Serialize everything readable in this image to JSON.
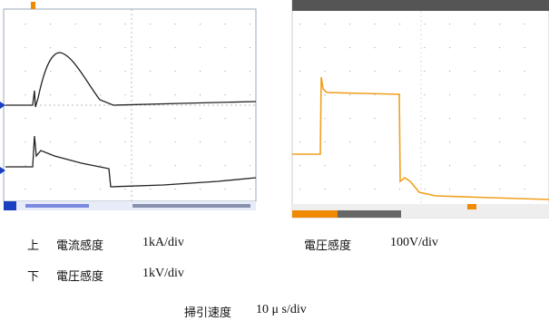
{
  "captions": {
    "upper": {
      "position": "上",
      "label": "電流感度",
      "value": "1kA/div"
    },
    "right": {
      "label": "電圧感度",
      "value": "100V/div"
    },
    "lower": {
      "position": "下",
      "label": "電圧感度",
      "value": "1kV/div"
    },
    "sweep": {
      "label": "掃引速度",
      "value": "10 μ s/div"
    }
  }
}
